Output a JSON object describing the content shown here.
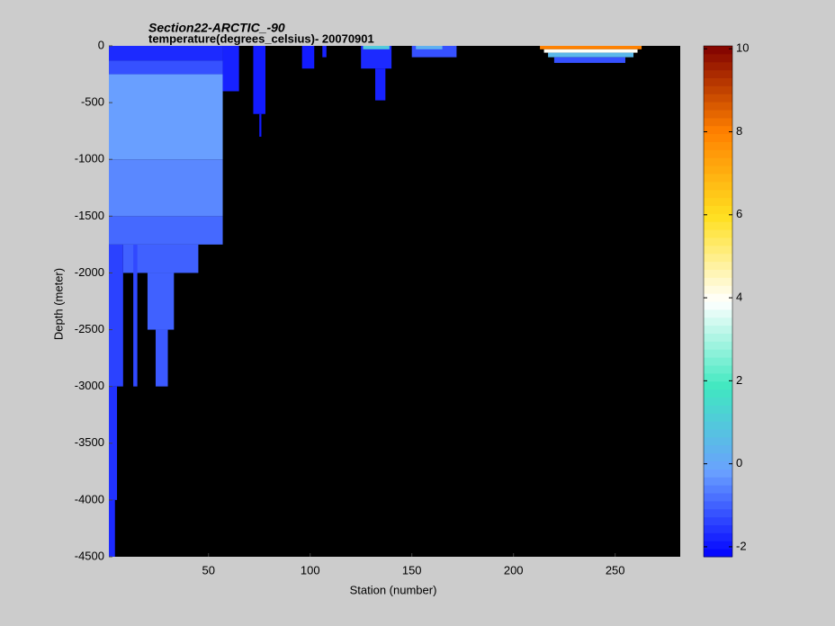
{
  "chart_data": {
    "type": "section",
    "title": "Section22-ARCTIC_-90",
    "subtitle": "temperature(degrees_celsius)- 20070901",
    "xlabel": "Station (number)",
    "ylabel": "Depth (meter)",
    "xlim": [
      1,
      282
    ],
    "xticks": [
      50,
      100,
      150,
      200,
      250
    ],
    "ylim": [
      -4500,
      0
    ],
    "yticks": [
      -4500,
      -4000,
      -3500,
      -3000,
      -2500,
      -2000,
      -1500,
      -1000,
      -500,
      0
    ],
    "background": "#000000",
    "colorbar": {
      "clim": [
        -2.24,
        10.07
      ],
      "ticks": [
        -2,
        0,
        2,
        4,
        6,
        8,
        10
      ],
      "colors": [
        "#0000ff",
        "#6aa0ff",
        "#40e8c0",
        "#ffffff",
        "#ffe020",
        "#ff8000",
        "#800000"
      ],
      "steps": 64
    },
    "cells": [
      {
        "x": [
          1,
          57
        ],
        "depth": [
          0,
          -130
        ],
        "value": -1.7
      },
      {
        "x": [
          1,
          57
        ],
        "depth": [
          -130,
          -250
        ],
        "value": -1.2
      },
      {
        "x": [
          1,
          57
        ],
        "depth": [
          -250,
          -1000
        ],
        "value": -0.2
      },
      {
        "x": [
          1,
          57
        ],
        "depth": [
          -1000,
          -1500
        ],
        "value": -0.5
      },
      {
        "x": [
          1,
          57
        ],
        "depth": [
          -1500,
          -1750
        ],
        "value": -0.9
      },
      {
        "x": [
          8,
          45
        ],
        "depth": [
          -1750,
          -2000
        ],
        "value": -1.0
      },
      {
        "x": [
          20,
          33
        ],
        "depth": [
          -2000,
          -2500
        ],
        "value": -1.0
      },
      {
        "x": [
          24,
          30
        ],
        "depth": [
          -2500,
          -3000
        ],
        "value": -1.1
      },
      {
        "x": [
          1,
          8
        ],
        "depth": [
          -1750,
          -3000
        ],
        "value": -1.4
      },
      {
        "x": [
          13,
          15
        ],
        "depth": [
          -1750,
          -3000
        ],
        "value": -1.3
      },
      {
        "x": [
          1,
          5
        ],
        "depth": [
          -3000,
          -4000
        ],
        "value": -1.6
      },
      {
        "x": [
          1,
          4
        ],
        "depth": [
          -4000,
          -4500
        ],
        "value": -1.7
      },
      {
        "x": [
          57,
          65
        ],
        "depth": [
          0,
          -400
        ],
        "value": -1.8
      },
      {
        "x": [
          72,
          78
        ],
        "depth": [
          0,
          -600
        ],
        "value": -1.9
      },
      {
        "x": [
          75,
          76
        ],
        "depth": [
          -600,
          -800
        ],
        "value": -1.9
      },
      {
        "x": [
          96,
          102
        ],
        "depth": [
          0,
          -200
        ],
        "value": -1.9
      },
      {
        "x": [
          106,
          108
        ],
        "depth": [
          0,
          -100
        ],
        "value": -1.8
      },
      {
        "x": [
          125,
          140
        ],
        "depth": [
          0,
          -200
        ],
        "value": -1.7
      },
      {
        "x": [
          132,
          137
        ],
        "depth": [
          -200,
          -480
        ],
        "value": -1.8
      },
      {
        "x": [
          126,
          139
        ],
        "depth": [
          0,
          -30
        ],
        "value": 1.0
      },
      {
        "x": [
          150,
          172
        ],
        "depth": [
          0,
          -100
        ],
        "value": -1.2
      },
      {
        "x": [
          152,
          165
        ],
        "depth": [
          0,
          -30
        ],
        "value": 0.3
      },
      {
        "x": [
          213,
          263
        ],
        "depth": [
          0,
          -30
        ],
        "value": 8.0
      },
      {
        "x": [
          215,
          261
        ],
        "depth": [
          -30,
          -60
        ],
        "value": 4.0
      },
      {
        "x": [
          217,
          259
        ],
        "depth": [
          -60,
          -100
        ],
        "value": 0.5
      },
      {
        "x": [
          220,
          255
        ],
        "depth": [
          -100,
          -150
        ],
        "value": -1.2
      }
    ]
  }
}
